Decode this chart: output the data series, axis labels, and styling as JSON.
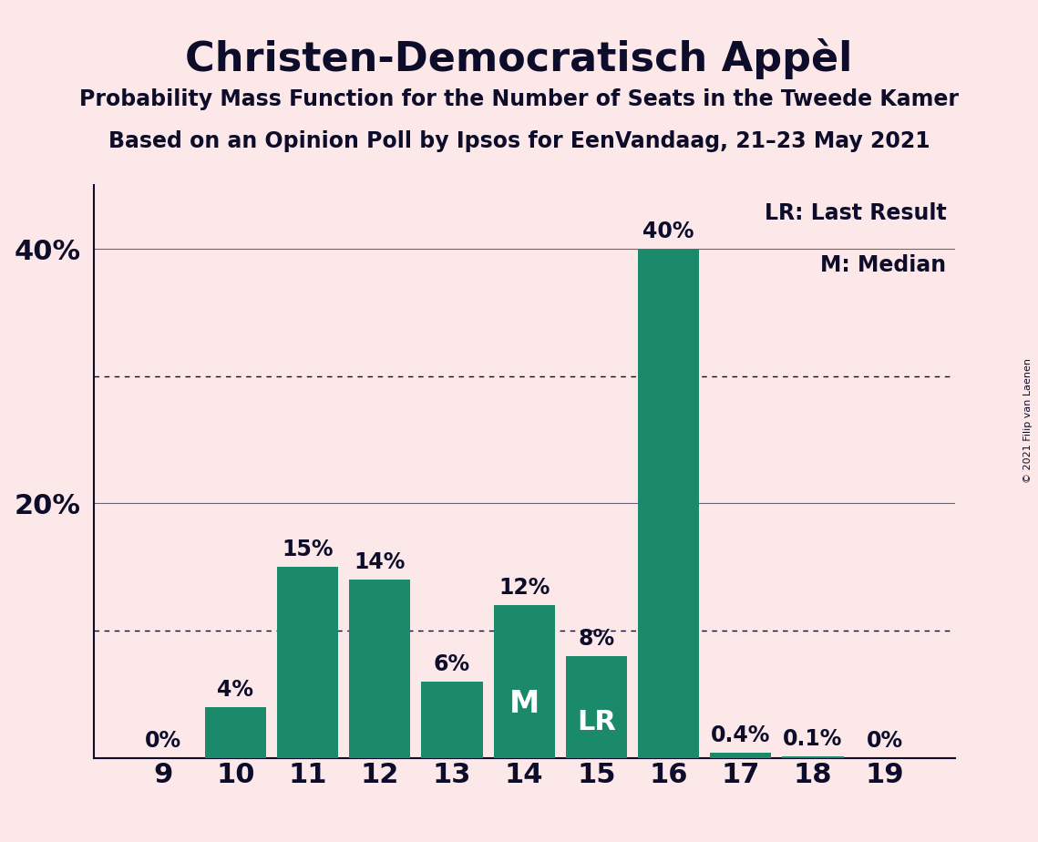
{
  "title": "Christen-Democratisch Appèl",
  "subtitle1": "Probability Mass Function for the Number of Seats in the Tweede Kamer",
  "subtitle2": "Based on an Opinion Poll by Ipsos for EenVandaag, 21–23 May 2021",
  "copyright": "© 2021 Filip van Laenen",
  "seats": [
    9,
    10,
    11,
    12,
    13,
    14,
    15,
    16,
    17,
    18,
    19
  ],
  "probabilities": [
    0.0,
    4.0,
    15.0,
    14.0,
    6.0,
    12.0,
    8.0,
    40.0,
    0.4,
    0.1,
    0.0
  ],
  "bar_color": "#1a8a6a",
  "background_color": "#fce8e8",
  "text_color": "#0d0d2b",
  "median_seat": 14,
  "lr_seat": 15,
  "bar_labels": {
    "9": "0%",
    "10": "4%",
    "11": "15%",
    "12": "14%",
    "13": "6%",
    "14": "12%",
    "15": "8%",
    "16": "40%",
    "17": "0.4%",
    "18": "0.1%",
    "19": "0%"
  },
  "legend_lr": "LR: Last Result",
  "legend_m": "M: Median",
  "dotted_lines": [
    10,
    30
  ],
  "solid_lines": [
    20,
    40
  ],
  "ylim": [
    0,
    45
  ]
}
